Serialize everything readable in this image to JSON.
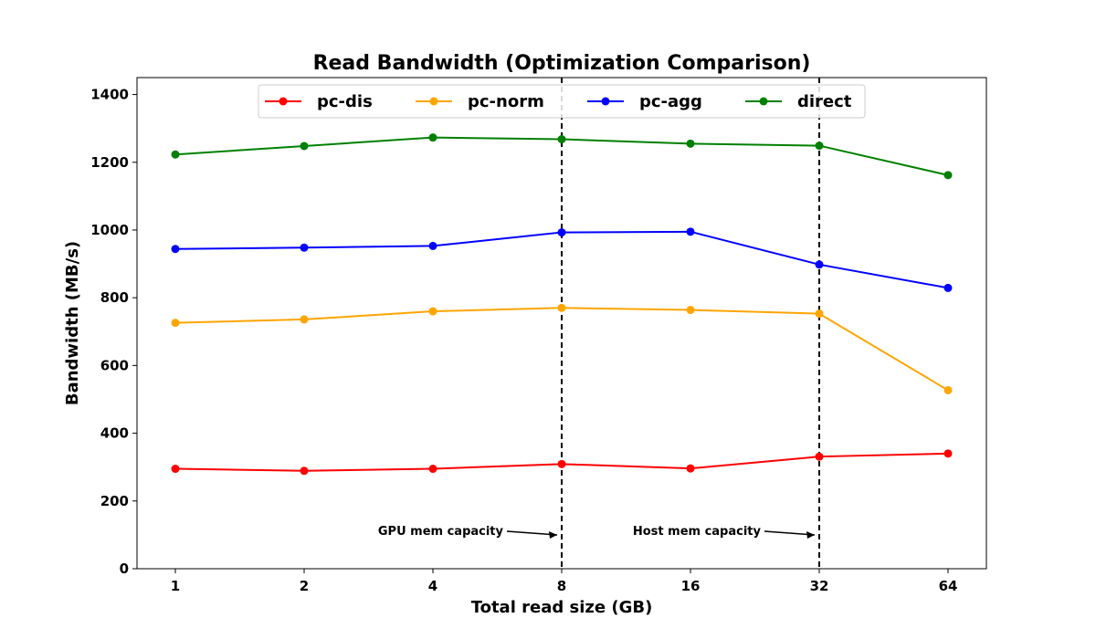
{
  "chart_data": {
    "type": "line",
    "title": "Read Bandwidth (Optimization Comparison)",
    "xlabel": "Total read size (GB)",
    "ylabel": "Bandwidth (MB/s)",
    "categories": [
      "1",
      "2",
      "4",
      "8",
      "16",
      "32",
      "64"
    ],
    "ylim": [
      0,
      1450
    ],
    "yticks": [
      "0",
      "200",
      "400",
      "600",
      "800",
      "1000",
      "1200",
      "1400"
    ],
    "grid": false,
    "legend_position": "top",
    "series": [
      {
        "name": "pc-dis",
        "color": "#ff0000",
        "values": [
          295,
          289,
          295,
          309,
          296,
          331,
          340
        ]
      },
      {
        "name": "pc-norm",
        "color": "#ffa500",
        "values": [
          726,
          736,
          760,
          770,
          764,
          753,
          527
        ]
      },
      {
        "name": "pc-agg",
        "color": "#0000ff",
        "values": [
          944,
          948,
          953,
          993,
          995,
          898,
          829
        ]
      },
      {
        "name": "direct",
        "color": "#008000",
        "values": [
          1223,
          1248,
          1273,
          1268,
          1255,
          1249,
          1162
        ]
      }
    ],
    "vlines": [
      {
        "category": "8",
        "annotation": "GPU mem capacity"
      },
      {
        "category": "32",
        "annotation": "Host mem capacity"
      }
    ]
  }
}
